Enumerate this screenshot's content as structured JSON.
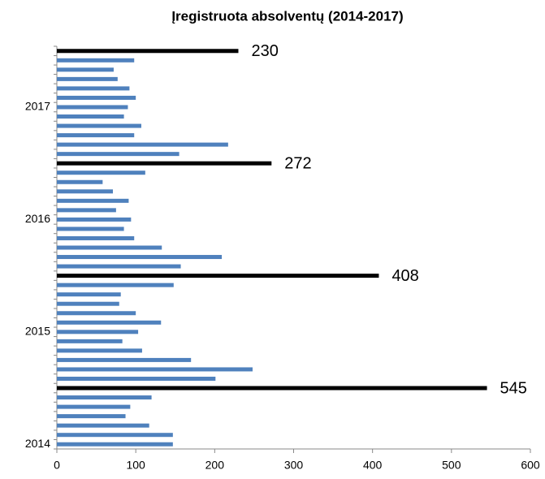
{
  "chart_data": {
    "type": "hbar",
    "title": "Įregistruota absolventų (2014-2017)",
    "categories": [
      "2014",
      null,
      null,
      null,
      null,
      null,
      null,
      null,
      null,
      null,
      null,
      null,
      "2015",
      null,
      null,
      null,
      null,
      null,
      null,
      null,
      null,
      null,
      null,
      null,
      "2016",
      null,
      null,
      null,
      null,
      null,
      null,
      null,
      null,
      null,
      null,
      null,
      "2017",
      null,
      null,
      null,
      null,
      null,
      null
    ],
    "series": [
      {
        "color": "#4f81bd",
        "values": [
          147,
          147,
          117,
          87,
          93,
          120,
          null,
          201,
          248,
          170,
          108,
          83,
          103,
          132,
          100,
          79,
          81,
          148,
          null,
          157,
          209,
          133,
          98,
          85,
          94,
          75,
          91,
          71,
          58,
          112,
          null,
          155,
          217,
          98,
          107,
          85,
          90,
          100,
          92,
          77,
          72,
          98,
          null
        ]
      },
      {
        "color": "#000000",
        "data_labels": true,
        "values": [
          null,
          null,
          null,
          null,
          null,
          null,
          545,
          null,
          null,
          null,
          null,
          null,
          null,
          null,
          null,
          null,
          null,
          null,
          408,
          null,
          null,
          null,
          null,
          null,
          null,
          null,
          null,
          null,
          null,
          null,
          272,
          null,
          null,
          null,
          null,
          null,
          null,
          null,
          null,
          null,
          null,
          null,
          230
        ]
      }
    ],
    "xlim": [
      0,
      600
    ],
    "xticks": [
      0,
      100,
      200,
      300,
      400,
      500,
      600
    ],
    "grid": false
  }
}
